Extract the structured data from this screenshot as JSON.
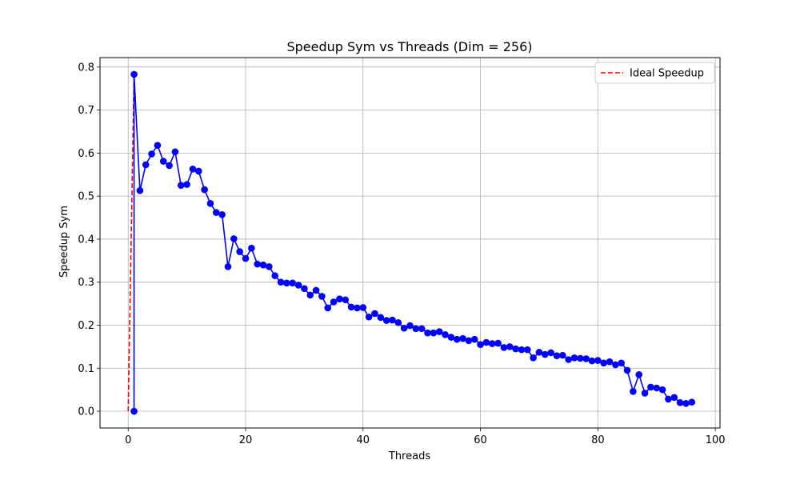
{
  "chart_data": {
    "type": "line",
    "title": "Speedup Sym vs Threads (Dim = 256)",
    "xlabel": "Threads",
    "ylabel": "Speedup Sym",
    "xlim": [
      -4.8,
      100.8
    ],
    "ylim": [
      -0.039,
      0.822
    ],
    "xticks": [
      0,
      20,
      40,
      60,
      80,
      100
    ],
    "xtick_labels": [
      "0",
      "20",
      "40",
      "60",
      "80",
      "100"
    ],
    "yticks": [
      0.0,
      0.1,
      0.2,
      0.3,
      0.4,
      0.5,
      0.6,
      0.7,
      0.8
    ],
    "ytick_labels": [
      "0.0",
      "0.1",
      "0.2",
      "0.3",
      "0.4",
      "0.5",
      "0.6",
      "0.7",
      "0.8"
    ],
    "grid": true,
    "legend": {
      "position": "top-right",
      "entries": [
        "Ideal Speedup"
      ]
    },
    "series": [
      {
        "kind": "measured",
        "color": "#0000ff",
        "line_style": "solid",
        "marker": "circle",
        "x": [
          1,
          1,
          2,
          3,
          4,
          5,
          6,
          7,
          8,
          9,
          10,
          11,
          12,
          13,
          14,
          15,
          16,
          17,
          18,
          19,
          20,
          21,
          22,
          23,
          24,
          25,
          26,
          27,
          28,
          29,
          30,
          31,
          32,
          33,
          34,
          35,
          36,
          37,
          38,
          39,
          40,
          41,
          42,
          43,
          44,
          45,
          46,
          47,
          48,
          49,
          50,
          51,
          52,
          53,
          54,
          55,
          56,
          57,
          58,
          59,
          60,
          61,
          62,
          63,
          64,
          65,
          66,
          67,
          68,
          69,
          70,
          71,
          72,
          73,
          74,
          75,
          76,
          77,
          78,
          79,
          80,
          81,
          82,
          83,
          84,
          85,
          86,
          87,
          88,
          89,
          90,
          91,
          92,
          93,
          94,
          95,
          96
        ],
        "y": [
          0.0,
          0.783,
          0.513,
          0.573,
          0.598,
          0.618,
          0.581,
          0.571,
          0.603,
          0.525,
          0.527,
          0.563,
          0.558,
          0.515,
          0.483,
          0.462,
          0.457,
          0.336,
          0.401,
          0.371,
          0.355,
          0.379,
          0.342,
          0.34,
          0.336,
          0.315,
          0.3,
          0.298,
          0.298,
          0.293,
          0.285,
          0.27,
          0.281,
          0.267,
          0.24,
          0.254,
          0.261,
          0.259,
          0.242,
          0.24,
          0.241,
          0.219,
          0.227,
          0.218,
          0.211,
          0.212,
          0.206,
          0.193,
          0.199,
          0.192,
          0.192,
          0.182,
          0.182,
          0.185,
          0.178,
          0.172,
          0.167,
          0.169,
          0.164,
          0.167,
          0.155,
          0.16,
          0.157,
          0.158,
          0.148,
          0.15,
          0.145,
          0.143,
          0.143,
          0.124,
          0.137,
          0.132,
          0.136,
          0.129,
          0.13,
          0.12,
          0.124,
          0.123,
          0.122,
          0.117,
          0.118,
          0.112,
          0.115,
          0.108,
          0.112,
          0.095,
          0.046,
          0.085,
          0.042,
          0.056,
          0.054,
          0.05,
          0.028,
          0.032,
          0.02,
          0.018,
          0.021
        ]
      },
      {
        "name": "Ideal Speedup",
        "kind": "ideal",
        "color": "#ff0000",
        "line_style": "dashed",
        "marker": "none",
        "x": [
          0,
          1
        ],
        "y": [
          0.0,
          0.783
        ]
      }
    ]
  }
}
